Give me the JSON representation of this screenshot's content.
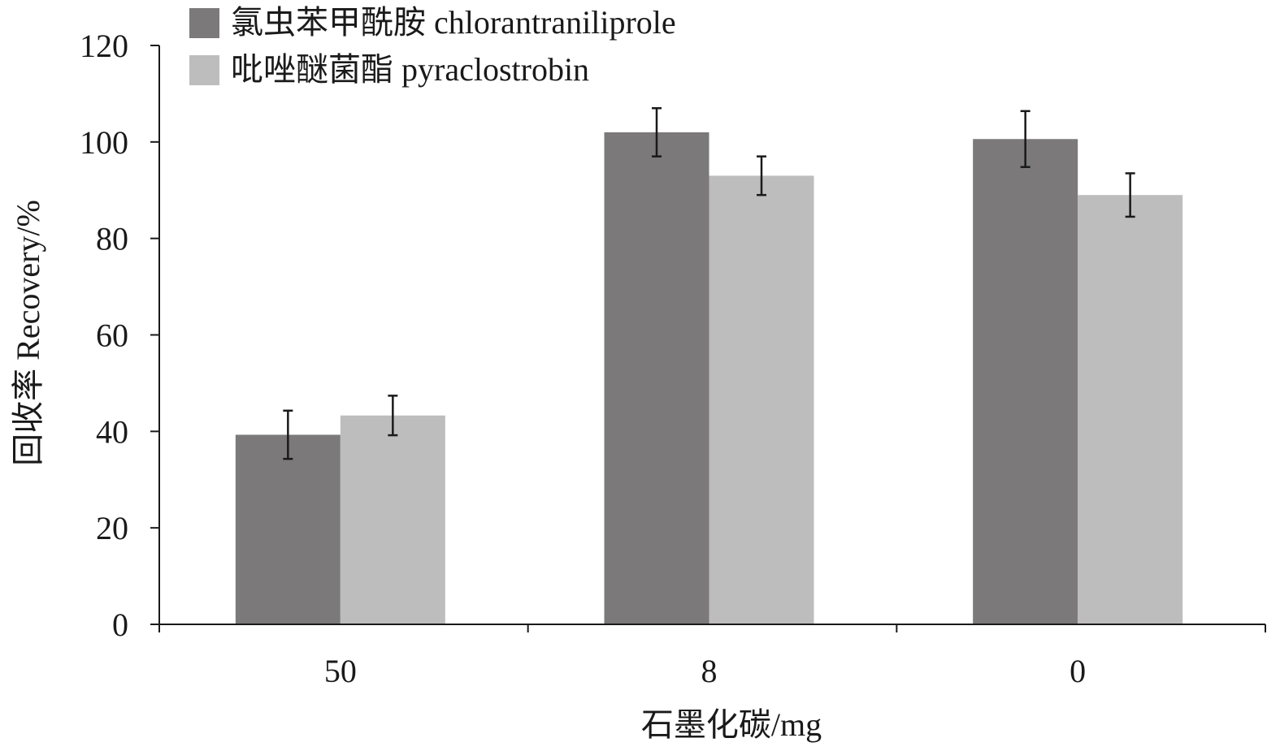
{
  "chart_data": {
    "type": "bar",
    "title": "",
    "xlabel": "石墨化碳/mg",
    "ylabel": "回收率 Recovery/%",
    "categories": [
      "50",
      "8",
      "0"
    ],
    "ylim": [
      0,
      120
    ],
    "yticks": [
      0,
      20,
      40,
      60,
      80,
      100,
      120
    ],
    "grid": false,
    "legend": "top-left",
    "series": [
      {
        "name": "氯虫苯甲酰胺 chlorantraniliprole",
        "color": "#7b797a",
        "values": [
          39.3,
          102.0,
          100.6
        ],
        "errors": [
          5.0,
          5.0,
          5.8
        ]
      },
      {
        "name": "吡唑醚菌酯 pyraclostrobin",
        "color": "#bdbdbd",
        "values": [
          43.3,
          93.0,
          89.0
        ],
        "errors": [
          4.1,
          4.0,
          4.5
        ]
      }
    ]
  }
}
